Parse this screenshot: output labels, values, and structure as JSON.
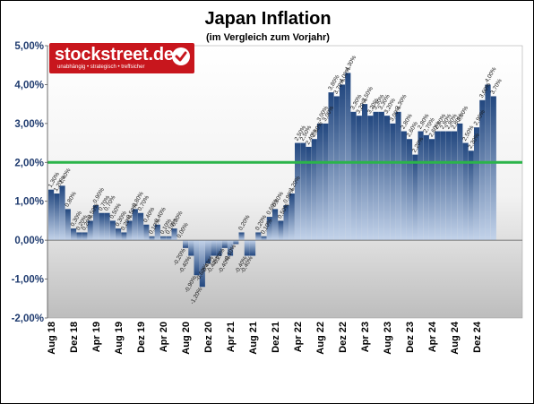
{
  "chart_data": {
    "type": "bar",
    "title": "Japan Inflation",
    "subtitle": "(im Vergleich zum Vorjahr)",
    "ylim": [
      -2.0,
      5.0
    ],
    "y_ticks": [
      "-2,00%",
      "-1,00%",
      "0,00%",
      "1,00%",
      "2,00%",
      "3,00%",
      "4,00%",
      "5,00%"
    ],
    "x_tick_labels": [
      "Aug 18",
      "Dez 18",
      "Apr 19",
      "Aug 19",
      "Dez 19",
      "Apr 20",
      "Aug 20",
      "Dez 20",
      "Apr 21",
      "Aug 21",
      "Dez 21",
      "Apr 22",
      "Aug 22",
      "Dez 22",
      "Apr 23",
      "Aug 23",
      "Dez 23",
      "Apr 24",
      "Aug 24",
      "Dez 24"
    ],
    "reference_line": 2.0,
    "start_month": "Aug 18",
    "values": [
      1.3,
      1.2,
      1.4,
      0.8,
      0.3,
      0.2,
      0.2,
      0.5,
      0.9,
      0.7,
      0.7,
      0.5,
      0.3,
      0.2,
      0.5,
      0.8,
      0.7,
      0.4,
      0.1,
      0.4,
      0.1,
      0.1,
      0.3,
      0.0,
      -0.2,
      -0.4,
      -0.9,
      -1.2,
      -0.6,
      -0.4,
      -0.4,
      -0.2,
      -0.4,
      -0.1,
      0.2,
      -0.4,
      -0.4,
      0.2,
      0.1,
      0.6,
      0.8,
      0.5,
      0.9,
      1.2,
      2.5,
      2.5,
      2.4,
      2.6,
      3.0,
      3.0,
      3.8,
      3.7,
      4.0,
      4.3,
      3.3,
      3.2,
      3.5,
      3.2,
      3.3,
      3.3,
      3.2,
      3.0,
      3.3,
      2.8,
      2.6,
      2.2,
      2.8,
      2.7,
      2.6,
      2.8,
      2.8,
      2.8,
      2.8,
      3.0,
      2.5,
      2.3,
      2.9,
      3.6,
      4.0,
      3.7
    ],
    "data_labels": [
      "1,30%",
      "1,20%",
      "1,40%",
      "0,80%",
      "0,30%",
      "0,20%",
      "0,20%",
      "0,50%",
      "0,90%",
      "0,70%",
      "0,70%",
      "0,50%",
      "0,30%",
      "0,20%",
      "0,50%",
      "0,80%",
      "0,70%",
      "0,40%",
      "0,10%",
      "0,40%",
      "0,10%",
      "0,10%",
      "0,30%",
      "0,00%",
      "-0,20%",
      "-0,40%",
      "-0,90%",
      "-1,20%",
      "-0,60%",
      "-0,40%",
      "-0,40%",
      "-0,20%",
      "-0,40%",
      "-0,10%",
      "0,20%",
      "-0,40%",
      "-0,40%",
      "0,20%",
      "0,10%",
      "0,60%",
      "0,80%",
      "0,50%",
      "0,90%",
      "1,20%",
      "2,50%",
      "2,50%",
      "2,40%",
      "2,60%",
      "3,00%",
      "3,00%",
      "3,80%",
      "3,70%",
      "4,00%",
      "4,30%",
      "3,30%",
      "3,20%",
      "3,50%",
      "3,20%",
      "3,30%",
      "3,30%",
      "3,20%",
      "3,00%",
      "3,30%",
      "2,80%",
      "2,60%",
      "2,20%",
      "2,80%",
      "2,70%",
      "2,60%",
      "2,80%",
      "2,80%",
      "2,80%",
      "2,80%",
      "3,00%",
      "2,50%",
      "2,30%",
      "2,90%",
      "3,60%",
      "4,00%",
      "3,70%"
    ],
    "grid": false,
    "plot_background": "gradient light-gray to white",
    "bar_color": "#2f5a9a",
    "bar_color_light": "#c3d3ea",
    "reference_line_color": "#2bb44a",
    "axis_label_color": "#1f3b6f"
  },
  "logo": {
    "text": "stockstreet.de",
    "tagline": "unabhängig • strategisch • treffsicher",
    "brand_color": "#c8161d"
  }
}
